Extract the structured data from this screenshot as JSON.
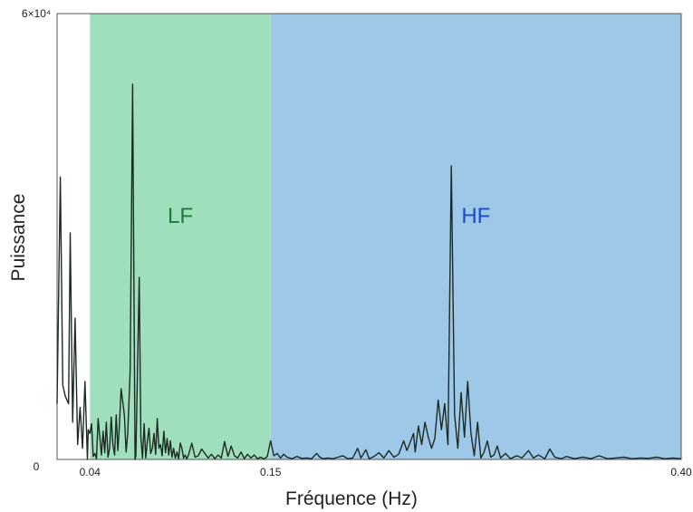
{
  "chart_data": {
    "type": "line",
    "title": "",
    "xlabel": "Fréquence (Hz)",
    "ylabel": "Puissance",
    "xlim": [
      0.02,
      0.4
    ],
    "ylim": [
      0,
      60000
    ],
    "y_tick_labels": [
      "0",
      "6×10⁴"
    ],
    "x_tick_labels": [
      "0.04",
      "0.15",
      "0.40"
    ],
    "x_ticks": [
      0.04,
      0.15,
      0.4
    ],
    "grid": false,
    "bands": [
      {
        "label": "LF",
        "from": 0.04,
        "to": 0.15,
        "color": "#9fdfbc",
        "label_color": "#1e7a3c"
      },
      {
        "label": "HF",
        "from": 0.15,
        "to": 0.4,
        "color": "#9dc8e8",
        "label_color": "#1f49c7"
      }
    ],
    "line_color": "#1c2a22",
    "series": [
      {
        "values": [
          [
            0.02,
            7500
          ],
          [
            0.022,
            38000
          ],
          [
            0.0235,
            10000
          ],
          [
            0.025,
            8500
          ],
          [
            0.027,
            7500
          ],
          [
            0.028,
            30500
          ],
          [
            0.0295,
            5000
          ],
          [
            0.031,
            19000
          ],
          [
            0.0325,
            2000
          ],
          [
            0.034,
            7000
          ],
          [
            0.0355,
            1500
          ],
          [
            0.037,
            10500
          ],
          [
            0.0385,
            0
          ],
          [
            0.039,
            4000
          ],
          [
            0.04,
            3500
          ],
          [
            0.041,
            4800
          ],
          [
            0.042,
            400
          ],
          [
            0.043,
            800
          ],
          [
            0.044,
            100
          ],
          [
            0.045,
            5500
          ],
          [
            0.047,
            600
          ],
          [
            0.048,
            3800
          ],
          [
            0.049,
            900
          ],
          [
            0.05,
            5000
          ],
          [
            0.051,
            300
          ],
          [
            0.052,
            1500
          ],
          [
            0.053,
            5700
          ],
          [
            0.054,
            2000
          ],
          [
            0.055,
            600
          ],
          [
            0.056,
            6000
          ],
          [
            0.057,
            1200
          ],
          [
            0.058,
            4800
          ],
          [
            0.059,
            9500
          ],
          [
            0.061,
            6000
          ],
          [
            0.062,
            1000
          ],
          [
            0.063,
            3500
          ],
          [
            0.0645,
            12000
          ],
          [
            0.066,
            50500
          ],
          [
            0.0675,
            0
          ],
          [
            0.068,
            500
          ],
          [
            0.07,
            24500
          ],
          [
            0.071,
            3000
          ],
          [
            0.072,
            200
          ],
          [
            0.073,
            4800
          ],
          [
            0.074,
            200
          ],
          [
            0.075,
            2500
          ],
          [
            0.076,
            4200
          ],
          [
            0.077,
            800
          ],
          [
            0.078,
            1500
          ],
          [
            0.079,
            3500
          ],
          [
            0.08,
            700
          ],
          [
            0.081,
            5500
          ],
          [
            0.082,
            1500
          ],
          [
            0.083,
            2000
          ],
          [
            0.084,
            500
          ],
          [
            0.085,
            3800
          ],
          [
            0.086,
            900
          ],
          [
            0.087,
            2800
          ],
          [
            0.088,
            600
          ],
          [
            0.089,
            2500
          ],
          [
            0.09,
            300
          ],
          [
            0.091,
            1500
          ],
          [
            0.092,
            200
          ],
          [
            0.093,
            1000
          ],
          [
            0.094,
            100
          ],
          [
            0.095,
            2200
          ],
          [
            0.096,
            1500
          ],
          [
            0.097,
            200
          ],
          [
            0.098,
            600
          ],
          [
            0.099,
            100
          ],
          [
            0.1,
            600
          ],
          [
            0.102,
            2200
          ],
          [
            0.104,
            300
          ],
          [
            0.106,
            500
          ],
          [
            0.108,
            1400
          ],
          [
            0.11,
            800
          ],
          [
            0.112,
            200
          ],
          [
            0.114,
            700
          ],
          [
            0.116,
            100
          ],
          [
            0.118,
            600
          ],
          [
            0.12,
            200
          ],
          [
            0.122,
            2400
          ],
          [
            0.124,
            400
          ],
          [
            0.126,
            1800
          ],
          [
            0.128,
            500
          ],
          [
            0.13,
            200
          ],
          [
            0.132,
            1000
          ],
          [
            0.134,
            100
          ],
          [
            0.136,
            700
          ],
          [
            0.138,
            200
          ],
          [
            0.14,
            600
          ],
          [
            0.142,
            100
          ],
          [
            0.144,
            300
          ],
          [
            0.146,
            50
          ],
          [
            0.148,
            400
          ],
          [
            0.15,
            2500
          ],
          [
            0.152,
            500
          ],
          [
            0.154,
            800
          ],
          [
            0.156,
            200
          ],
          [
            0.158,
            700
          ],
          [
            0.16,
            300
          ],
          [
            0.163,
            100
          ],
          [
            0.166,
            400
          ],
          [
            0.169,
            150
          ],
          [
            0.172,
            200
          ],
          [
            0.175,
            100
          ],
          [
            0.178,
            800
          ],
          [
            0.18,
            300
          ],
          [
            0.182,
            100
          ],
          [
            0.185,
            200
          ],
          [
            0.188,
            100
          ],
          [
            0.191,
            300
          ],
          [
            0.194,
            500
          ],
          [
            0.197,
            100
          ],
          [
            0.2,
            200
          ],
          [
            0.203,
            1500
          ],
          [
            0.205,
            200
          ],
          [
            0.208,
            1300
          ],
          [
            0.21,
            100
          ],
          [
            0.213,
            400
          ],
          [
            0.216,
            900
          ],
          [
            0.219,
            200
          ],
          [
            0.222,
            1200
          ],
          [
            0.225,
            300
          ],
          [
            0.228,
            700
          ],
          [
            0.231,
            2500
          ],
          [
            0.233,
            1200
          ],
          [
            0.235,
            2300
          ],
          [
            0.237,
            3500
          ],
          [
            0.238,
            1000
          ],
          [
            0.24,
            4500
          ],
          [
            0.242,
            2000
          ],
          [
            0.244,
            5000
          ],
          [
            0.246,
            3000
          ],
          [
            0.248,
            1500
          ],
          [
            0.25,
            2800
          ],
          [
            0.252,
            8000
          ],
          [
            0.254,
            4000
          ],
          [
            0.256,
            7500
          ],
          [
            0.258,
            2000
          ],
          [
            0.26,
            39500
          ],
          [
            0.262,
            6000
          ],
          [
            0.264,
            1500
          ],
          [
            0.266,
            9000
          ],
          [
            0.268,
            3000
          ],
          [
            0.27,
            10500
          ],
          [
            0.272,
            3500
          ],
          [
            0.274,
            500
          ],
          [
            0.276,
            5000
          ],
          [
            0.278,
            200
          ],
          [
            0.28,
            1000
          ],
          [
            0.282,
            2500
          ],
          [
            0.284,
            300
          ],
          [
            0.286,
            600
          ],
          [
            0.288,
            1800
          ],
          [
            0.29,
            200
          ],
          [
            0.293,
            800
          ],
          [
            0.296,
            100
          ],
          [
            0.3,
            500
          ],
          [
            0.303,
            200
          ],
          [
            0.307,
            1200
          ],
          [
            0.31,
            200
          ],
          [
            0.313,
            600
          ],
          [
            0.317,
            100
          ],
          [
            0.32,
            1400
          ],
          [
            0.323,
            300
          ],
          [
            0.327,
            100
          ],
          [
            0.33,
            400
          ],
          [
            0.335,
            100
          ],
          [
            0.34,
            300
          ],
          [
            0.345,
            100
          ],
          [
            0.35,
            500
          ],
          [
            0.355,
            100
          ],
          [
            0.36,
            200
          ],
          [
            0.365,
            300
          ],
          [
            0.37,
            100
          ],
          [
            0.375,
            200
          ],
          [
            0.38,
            150
          ],
          [
            0.385,
            300
          ],
          [
            0.39,
            100
          ],
          [
            0.395,
            200
          ],
          [
            0.4,
            100
          ]
        ]
      }
    ]
  }
}
